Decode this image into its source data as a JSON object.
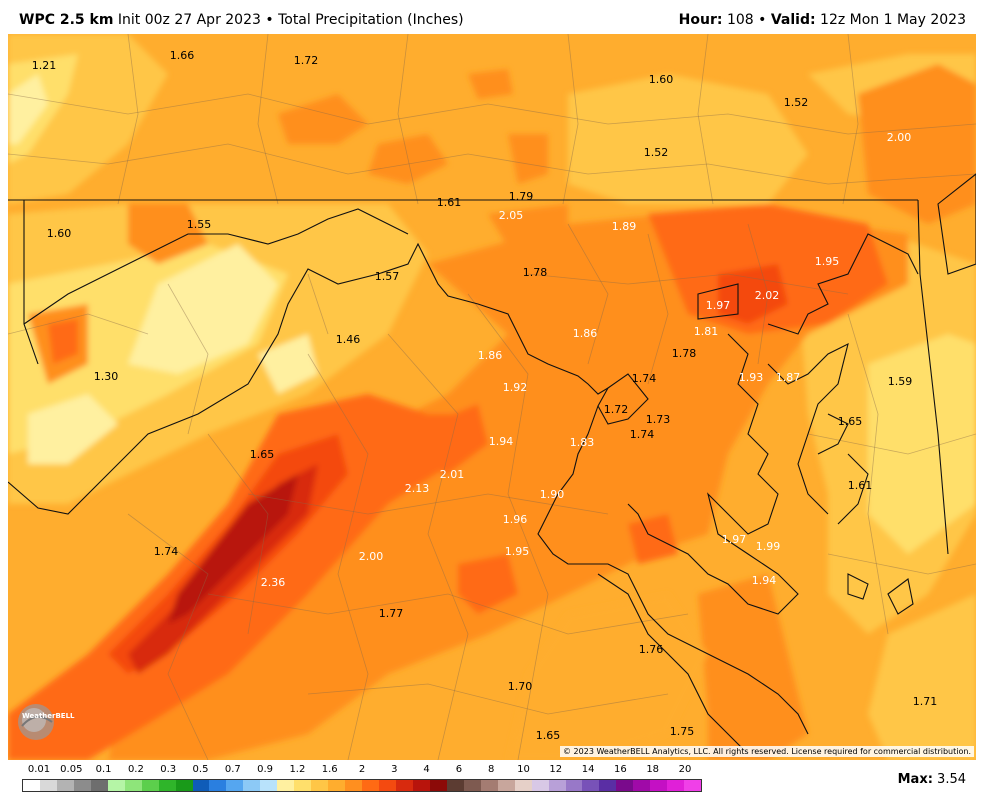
{
  "header": {
    "model": "WPC 2.5 km",
    "init": "Init 00z 27 Apr 2023",
    "separator": "•",
    "field": "Total Precipitation (Inches)",
    "hour_label": "Hour:",
    "hour_value": "108",
    "valid_label": "Valid:",
    "valid_value": "12z Mon 1 May 2023"
  },
  "map_labels": [
    {
      "id": "l01",
      "text": "1.21"
    },
    {
      "id": "l02",
      "text": "1.66"
    },
    {
      "id": "l03",
      "text": "1.72"
    },
    {
      "id": "l04",
      "text": "1.60"
    },
    {
      "id": "l05",
      "text": "1.52"
    },
    {
      "id": "l06",
      "text": "1.52"
    },
    {
      "id": "l07",
      "text": "2.00"
    },
    {
      "id": "l08",
      "text": "1.79"
    },
    {
      "id": "l09",
      "text": "1.61"
    },
    {
      "id": "l10",
      "text": "2.05"
    },
    {
      "id": "l11",
      "text": "1.89"
    },
    {
      "id": "l12",
      "text": "1.60"
    },
    {
      "id": "l13",
      "text": "1.55"
    },
    {
      "id": "l14",
      "text": "1.95"
    },
    {
      "id": "l15",
      "text": "1.57"
    },
    {
      "id": "l16",
      "text": "1.78"
    },
    {
      "id": "l17",
      "text": "1.97"
    },
    {
      "id": "l18",
      "text": "2.02"
    },
    {
      "id": "l19",
      "text": "1.81"
    },
    {
      "id": "l20",
      "text": "1.86"
    },
    {
      "id": "l21",
      "text": "1.46"
    },
    {
      "id": "l22",
      "text": "1.78"
    },
    {
      "id": "l23",
      "text": "1.86"
    },
    {
      "id": "l24",
      "text": "1.30"
    },
    {
      "id": "l25",
      "text": "1.92"
    },
    {
      "id": "l26",
      "text": "1.74"
    },
    {
      "id": "l27",
      "text": "1.93"
    },
    {
      "id": "l28",
      "text": "1.87"
    },
    {
      "id": "l29",
      "text": "1.59"
    },
    {
      "id": "l30",
      "text": "1.72"
    },
    {
      "id": "l31",
      "text": "1.73"
    },
    {
      "id": "l32",
      "text": "1.65"
    },
    {
      "id": "l33",
      "text": "1.94"
    },
    {
      "id": "l34",
      "text": "1.83"
    },
    {
      "id": "l35",
      "text": "1.74"
    },
    {
      "id": "l36",
      "text": "1.65"
    },
    {
      "id": "l37",
      "text": "2.01"
    },
    {
      "id": "l38",
      "text": "1.61"
    },
    {
      "id": "l39",
      "text": "2.13"
    },
    {
      "id": "l40",
      "text": "1.90"
    },
    {
      "id": "l41",
      "text": "1.96"
    },
    {
      "id": "l42",
      "text": "1.97"
    },
    {
      "id": "l43",
      "text": "1.99"
    },
    {
      "id": "l44",
      "text": "1.74"
    },
    {
      "id": "l45",
      "text": "2.00"
    },
    {
      "id": "l46",
      "text": "1.95"
    },
    {
      "id": "l47",
      "text": "2.36"
    },
    {
      "id": "l48",
      "text": "1.94"
    },
    {
      "id": "l49",
      "text": "1.77"
    },
    {
      "id": "l50",
      "text": "1.76"
    },
    {
      "id": "l51",
      "text": "1.70"
    },
    {
      "id": "l52",
      "text": "1.71"
    },
    {
      "id": "l53",
      "text": "1.75"
    },
    {
      "id": "l54",
      "text": "1.65"
    }
  ],
  "copyright": "© 2023 WeatherBELL Analytics, LLC. All rights reserved. License required for commercial distribution.",
  "logo_text": "WeatherBELL",
  "legend": {
    "ticks": [
      "0.01",
      "0.05",
      "0.1",
      "0.2",
      "0.3",
      "0.5",
      "0.7",
      "0.9",
      "1.2",
      "1.6",
      "2",
      "3",
      "4",
      "6",
      "8",
      "10",
      "12",
      "14",
      "16",
      "18",
      "20"
    ],
    "colors": [
      "#ffffff",
      "#d9d9d9",
      "#b3b3b3",
      "#8c8c8c",
      "#6e6e6e",
      "#b5f5a6",
      "#8ee57a",
      "#5ccf4c",
      "#2fb52a",
      "#199a19",
      "#0f5cb8",
      "#2a7fe0",
      "#55a6f0",
      "#8cc9f6",
      "#b8e2fb",
      "#fff0a0",
      "#ffdf6b",
      "#ffc646",
      "#ffad2e",
      "#ff8f1f",
      "#ff6a14",
      "#f44a10",
      "#d82a0e",
      "#b8140c",
      "#8c0a08",
      "#5c3c32",
      "#7e5a50",
      "#a47c72",
      "#c8a69c",
      "#e6d0c8",
      "#d8c8e6",
      "#b8a0d8",
      "#9878c8",
      "#7852b8",
      "#5a2ea4",
      "#7a0a8c",
      "#a00aa8",
      "#c410c4",
      "#e020d8",
      "#f040e8"
    ],
    "max_label": "Max:",
    "max_value": "3.54"
  }
}
